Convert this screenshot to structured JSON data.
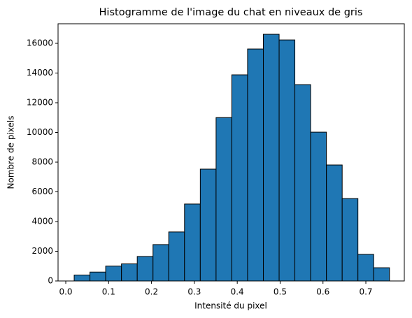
{
  "chart_data": {
    "type": "histogram",
    "title": "Histogramme de l'image du chat en niveaux de gris",
    "xlabel": "Intensité du pixel",
    "ylabel": "Nombre de pixels",
    "bins": [
      0.0196,
      0.0564,
      0.0931,
      0.1299,
      0.1667,
      0.2035,
      0.2402,
      0.277,
      0.3138,
      0.3506,
      0.3873,
      0.4241,
      0.4609,
      0.4977,
      0.5344,
      0.5712,
      0.608,
      0.6448,
      0.6815,
      0.7183,
      0.7551
    ],
    "counts": [
      400,
      600,
      1000,
      1150,
      1650,
      2450,
      3300,
      5180,
      7530,
      11000,
      13880,
      15620,
      16610,
      16230,
      13220,
      10020,
      7810,
      5550,
      1790,
      890
    ],
    "color": "#1f77b4",
    "edgecolor": "#000000",
    "xlim": [
      -0.018,
      0.7897
    ],
    "ylim": [
      0,
      17318
    ],
    "xticks": [
      {
        "value": 0,
        "label": "0.0"
      },
      0.1,
      0.2,
      0.3,
      0.4,
      0.5,
      0.6,
      0.7
    ],
    "yticks": [
      0,
      2000,
      4000,
      6000,
      8000,
      10000,
      12000,
      14000,
      16000
    ]
  }
}
